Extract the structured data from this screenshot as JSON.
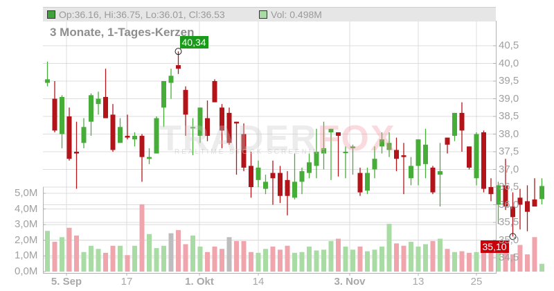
{
  "legend": {
    "ohlc_text": "Op:36.16, Hi:36.75, Lo:36.01, Cl:36.53",
    "vol_text": "Vol: 0.498M",
    "ohlc_swatch_color": "#3fa33a",
    "vol_swatch_color": "#a8dca4"
  },
  "title": "3 Monate, 1-Tages-Kerzen",
  "watermark": {
    "main_a": "TRADER",
    "main_b": "FOX",
    "sub": "REALTIME STOCK SCREENING"
  },
  "high_marker": {
    "label": "40,34",
    "color": "#1a9a1a"
  },
  "low_marker": {
    "label": "35,10",
    "color": "#c8000a"
  },
  "price_axis": {
    "labels": [
      "40,5",
      "40,0",
      "39,5",
      "39,0",
      "38,5",
      "38,0",
      "37,5",
      "37,0",
      "36,5",
      "36,0",
      "35,5",
      "35,0",
      "34,5"
    ]
  },
  "volume_axis": {
    "labels": [
      "5,0M",
      "4,0M",
      "3,0M",
      "2,0M",
      "1,0M",
      "0,0M"
    ]
  },
  "x_axis": {
    "labels": [
      {
        "text": "5. Sep",
        "bold": true
      },
      {
        "text": "17",
        "bold": false
      },
      {
        "text": "1. Okt",
        "bold": true
      },
      {
        "text": "14",
        "bold": false
      },
      {
        "text": "3. Nov",
        "bold": true
      },
      {
        "text": "13",
        "bold": false
      },
      {
        "text": "25",
        "bold": false
      }
    ]
  },
  "colors": {
    "up": "#46ad38",
    "down": "#b3141a",
    "vol_up": "#a8dca4",
    "vol_down": "#f0a4ac",
    "vol_neutral": "#bdbdbd",
    "grid": "#dcdcdc",
    "axis": "#b0b0b0"
  },
  "chart_data": {
    "type": "candlestick",
    "title": "3 Monate, 1-Tages-Kerzen",
    "xlabel": "",
    "ylabel": "",
    "ylim": [
      34.3,
      40.7
    ],
    "volume_ylim_millions": [
      0,
      5.0
    ],
    "x_tick_labels": [
      "5. Sep",
      "17",
      "1. Okt",
      "14",
      "3. Nov",
      "13",
      "25"
    ],
    "last": {
      "open": 36.16,
      "high": 36.75,
      "low": 36.01,
      "close": 36.53,
      "volume_millions": 0.498
    },
    "period_high": 40.34,
    "period_low": 35.1,
    "candles": [
      {
        "o": 39.45,
        "h": 40.05,
        "l": 39.35,
        "c": 39.55,
        "v": 2.6
      },
      {
        "o": 39.0,
        "h": 39.5,
        "l": 38.05,
        "c": 38.1,
        "v": 1.9
      },
      {
        "o": 38.0,
        "h": 39.1,
        "l": 37.6,
        "c": 39.05,
        "v": 2.2
      },
      {
        "o": 38.5,
        "h": 38.75,
        "l": 37.25,
        "c": 37.3,
        "v": 2.8
      },
      {
        "o": 37.5,
        "h": 38.35,
        "l": 36.45,
        "c": 37.45,
        "v": 2.3
      },
      {
        "o": 37.75,
        "h": 38.45,
        "l": 37.6,
        "c": 38.2,
        "v": 1.25
      },
      {
        "o": 38.35,
        "h": 39.15,
        "l": 37.95,
        "c": 39.1,
        "v": 1.65
      },
      {
        "o": 38.85,
        "h": 39.2,
        "l": 38.55,
        "c": 39.0,
        "v": 1.45
      },
      {
        "o": 39.05,
        "h": 39.85,
        "l": 38.45,
        "c": 38.45,
        "v": 1.2
      },
      {
        "o": 38.55,
        "h": 38.85,
        "l": 37.5,
        "c": 37.55,
        "v": 1.65
      },
      {
        "o": 37.75,
        "h": 38.45,
        "l": 37.75,
        "c": 38.2,
        "v": 1.65
      },
      {
        "o": 37.95,
        "h": 38.55,
        "l": 37.85,
        "c": 37.9,
        "v": 1.05
      },
      {
        "o": 37.85,
        "h": 38.05,
        "l": 37.65,
        "c": 37.95,
        "v": 1.65
      },
      {
        "o": 37.95,
        "h": 38.0,
        "l": 36.65,
        "c": 37.35,
        "v": 4.3
      },
      {
        "o": 37.3,
        "h": 37.6,
        "l": 37.15,
        "c": 37.35,
        "v": 2.4
      },
      {
        "o": 37.45,
        "h": 38.5,
        "l": 37.45,
        "c": 38.45,
        "v": 1.5
      },
      {
        "o": 38.75,
        "h": 39.45,
        "l": 38.2,
        "c": 39.5,
        "v": 1.65
      },
      {
        "o": 39.45,
        "h": 39.85,
        "l": 39.0,
        "c": 39.65,
        "v": 2.45
      },
      {
        "o": 39.95,
        "h": 40.34,
        "l": 39.7,
        "c": 39.85,
        "v": 2.65
      },
      {
        "o": 39.25,
        "h": 39.35,
        "l": 37.95,
        "c": 38.55,
        "v": 1.75
      },
      {
        "o": 38.2,
        "h": 38.45,
        "l": 37.4,
        "c": 38.2,
        "v": 2.3
      },
      {
        "o": 37.95,
        "h": 38.75,
        "l": 37.75,
        "c": 38.75,
        "v": 1.6
      },
      {
        "o": 38.45,
        "h": 38.95,
        "l": 37.8,
        "c": 37.95,
        "v": 1.25
      },
      {
        "o": 39.5,
        "h": 39.55,
        "l": 38.95,
        "c": 38.9,
        "v": 1.6
      },
      {
        "o": 38.75,
        "h": 38.85,
        "l": 37.6,
        "c": 38.1,
        "v": 1.45
      },
      {
        "o": 38.6,
        "h": 38.75,
        "l": 37.7,
        "c": 37.75,
        "v": 2.2
      },
      {
        "o": 38.35,
        "h": 38.25,
        "l": 36.85,
        "c": 38.3,
        "v": 1.95
      },
      {
        "o": 38.0,
        "h": 38.3,
        "l": 36.95,
        "c": 37.05,
        "v": 1.95
      },
      {
        "o": 37.1,
        "h": 37.5,
        "l": 36.2,
        "c": 36.5,
        "v": 1.25
      },
      {
        "o": 36.7,
        "h": 37.25,
        "l": 36.5,
        "c": 37.05,
        "v": 1.2
      },
      {
        "o": 36.45,
        "h": 36.85,
        "l": 36.3,
        "c": 36.65,
        "v": 1.45
      },
      {
        "o": 36.9,
        "h": 37.25,
        "l": 36.0,
        "c": 36.75,
        "v": 1.6
      },
      {
        "o": 36.9,
        "h": 37.1,
        "l": 36.05,
        "c": 36.25,
        "v": 1.4
      },
      {
        "o": 36.7,
        "h": 36.95,
        "l": 35.7,
        "c": 36.25,
        "v": 1.65
      },
      {
        "o": 36.2,
        "h": 37.45,
        "l": 36.15,
        "c": 36.65,
        "v": 1.2
      },
      {
        "o": 36.65,
        "h": 37.05,
        "l": 36.3,
        "c": 36.95,
        "v": 1.25
      },
      {
        "o": 36.9,
        "h": 37.45,
        "l": 36.75,
        "c": 37.2,
        "v": 1.6
      },
      {
        "o": 37.1,
        "h": 38.15,
        "l": 36.75,
        "c": 37.5,
        "v": 1.35
      },
      {
        "o": 37.45,
        "h": 38.35,
        "l": 37.0,
        "c": 37.6,
        "v": 1.4
      },
      {
        "o": 38.05,
        "h": 38.15,
        "l": 36.7,
        "c": 38.15,
        "v": 1.95
      },
      {
        "o": 38.05,
        "h": 37.9,
        "l": 36.8,
        "c": 37.95,
        "v": 2.1
      },
      {
        "o": 37.5,
        "h": 37.65,
        "l": 36.75,
        "c": 37.5,
        "v": 1.6
      },
      {
        "o": 37.6,
        "h": 37.7,
        "l": 36.85,
        "c": 37.65,
        "v": 1.4
      },
      {
        "o": 36.9,
        "h": 37.05,
        "l": 36.25,
        "c": 36.35,
        "v": 1.6
      },
      {
        "o": 36.4,
        "h": 37.05,
        "l": 36.3,
        "c": 36.9,
        "v": 1.3
      },
      {
        "o": 37.0,
        "h": 37.65,
        "l": 36.75,
        "c": 37.3,
        "v": 1.4
      },
      {
        "o": 37.65,
        "h": 38.05,
        "l": 37.45,
        "c": 37.85,
        "v": 1.6
      },
      {
        "o": 37.55,
        "h": 38.05,
        "l": 37.35,
        "c": 37.75,
        "v": 3.05
      },
      {
        "o": 37.55,
        "h": 37.9,
        "l": 36.95,
        "c": 37.3,
        "v": 1.8
      },
      {
        "o": 37.4,
        "h": 37.75,
        "l": 36.3,
        "c": 37.35,
        "v": 1.65
      },
      {
        "o": 36.75,
        "h": 37.35,
        "l": 36.55,
        "c": 37.1,
        "v": 1.9
      },
      {
        "o": 37.1,
        "h": 37.75,
        "l": 36.55,
        "c": 37.85,
        "v": 1.6
      },
      {
        "o": 37.15,
        "h": 38.15,
        "l": 36.75,
        "c": 37.7,
        "v": 1.75
      },
      {
        "o": 37.05,
        "h": 37.1,
        "l": 36.3,
        "c": 36.35,
        "v": 1.95
      },
      {
        "o": 36.85,
        "h": 37.75,
        "l": 35.95,
        "c": 36.95,
        "v": 2.1
      },
      {
        "o": 37.9,
        "h": 37.85,
        "l": 37.45,
        "c": 37.7,
        "v": 1.45
      },
      {
        "o": 37.95,
        "h": 38.6,
        "l": 37.8,
        "c": 38.6,
        "v": 1.25
      },
      {
        "o": 38.6,
        "h": 38.9,
        "l": 37.5,
        "c": 38.1,
        "v": 1.3
      },
      {
        "o": 37.65,
        "h": 37.35,
        "l": 37.0,
        "c": 37.05,
        "v": 1.2
      },
      {
        "o": 36.75,
        "h": 38.05,
        "l": 36.55,
        "c": 38.0,
        "v": 1.25
      },
      {
        "o": 38.05,
        "h": 38.1,
        "l": 36.35,
        "c": 36.45,
        "v": 1.2
      },
      {
        "o": 36.5,
        "h": 36.75,
        "l": 36.1,
        "c": 36.3,
        "v": 1.4
      },
      {
        "o": 36.0,
        "h": 36.65,
        "l": 35.45,
        "c": 36.55,
        "v": 1.2
      },
      {
        "o": 36.55,
        "h": 37.3,
        "l": 35.85,
        "c": 35.95,
        "v": 1.4
      },
      {
        "o": 35.95,
        "h": 36.35,
        "l": 35.1,
        "c": 35.65,
        "v": 1.1
      },
      {
        "o": 36.2,
        "h": 36.45,
        "l": 35.3,
        "c": 36.0,
        "v": 1.7
      },
      {
        "o": 36.1,
        "h": 36.55,
        "l": 35.25,
        "c": 35.8,
        "v": 1.1
      },
      {
        "o": 36.15,
        "h": 36.75,
        "l": 36.0,
        "c": 35.95,
        "v": 2.2
      },
      {
        "o": 36.16,
        "h": 36.75,
        "l": 36.01,
        "c": 36.53,
        "v": 0.498
      }
    ]
  }
}
